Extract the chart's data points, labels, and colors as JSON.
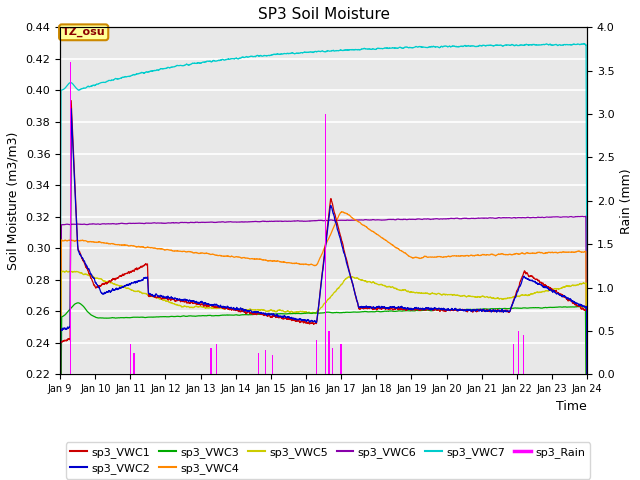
{
  "title": "SP3 Soil Moisture",
  "ylabel_left": "Soil Moisture (m3/m3)",
  "ylabel_right": "Rain (mm)",
  "xlabel": "Time",
  "xlim_days": [
    9,
    24
  ],
  "ylim_left": [
    0.22,
    0.44
  ],
  "ylim_right": [
    0.0,
    4.0
  ],
  "annotation_text": "TZ_osu",
  "background_color": "#E8E8E8",
  "colors": {
    "sp3_VWC1": "#CC0000",
    "sp3_VWC2": "#0000CC",
    "sp3_VWC3": "#00AA00",
    "sp3_VWC4": "#FF8800",
    "sp3_VWC5": "#CCCC00",
    "sp3_VWC6": "#8800AA",
    "sp3_VWC7": "#00CCCC",
    "sp3_Rain": "#FF00FF"
  },
  "legend_entries": [
    "sp3_VWC1",
    "sp3_VWC2",
    "sp3_VWC3",
    "sp3_VWC4",
    "sp3_VWC5",
    "sp3_VWC6",
    "sp3_VWC7",
    "sp3_Rain"
  ],
  "xtick_labels": [
    "Jan 9",
    "Jan 10",
    "Jan 11",
    "Jan 12",
    "Jan 13",
    "Jan 14",
    "Jan 15",
    "Jan 16",
    "Jan 17",
    "Jan 18",
    "Jan 19",
    "Jan 20",
    "Jan 21",
    "Jan 22",
    "Jan 23",
    "Jan 24"
  ],
  "xtick_positions": [
    9,
    10,
    11,
    12,
    13,
    14,
    15,
    16,
    17,
    18,
    19,
    20,
    21,
    22,
    23,
    24
  ],
  "ytick_positions": [
    0.22,
    0.24,
    0.26,
    0.28,
    0.3,
    0.32,
    0.34,
    0.36,
    0.38,
    0.4,
    0.42,
    0.44
  ],
  "rain_times": [
    9.3,
    11.0,
    11.1,
    13.3,
    13.45,
    14.65,
    14.85,
    15.05,
    16.3,
    16.55,
    16.65,
    16.75,
    17.0,
    21.9,
    22.05,
    22.2
  ],
  "rain_heights": [
    3.6,
    0.35,
    0.25,
    0.3,
    0.35,
    0.25,
    0.28,
    0.22,
    0.4,
    3.0,
    0.5,
    0.3,
    0.35,
    0.35,
    0.5,
    0.45
  ]
}
